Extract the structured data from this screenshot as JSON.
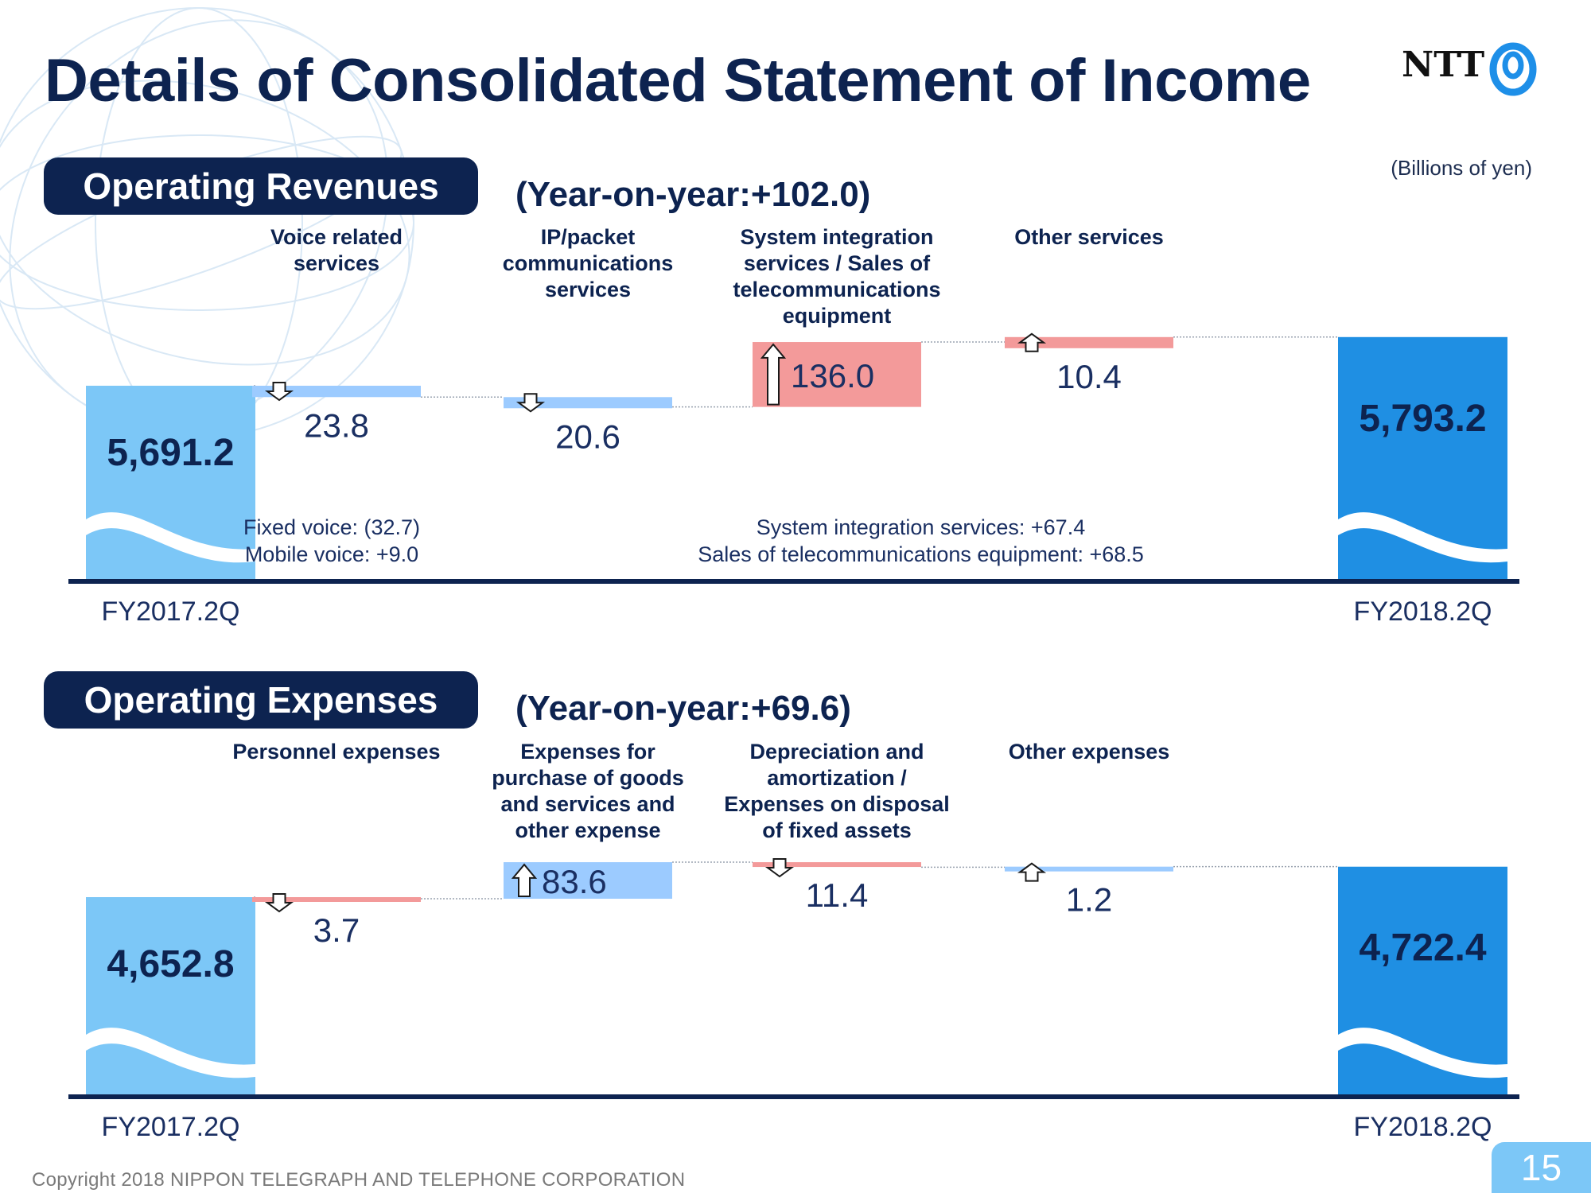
{
  "title": "Details of Consolidated Statement of Income",
  "logo": {
    "text": "NTT",
    "icon": "ntt-swirl-icon"
  },
  "units": "(Billions of yen)",
  "colors": {
    "navy": "#0d2350",
    "end_bar": "#7cc7f7",
    "end_bar_dark": "#1f8fe3",
    "increase_red": "#f39a9a",
    "decrease_blue": "#9ccbff"
  },
  "footer": {
    "copyright": "Copyright 2018 NIPPON TELEGRAPH AND TELEPHONE CORPORATION",
    "page": "15"
  },
  "chart_data": [
    {
      "type": "waterfall",
      "section_title": "Operating Revenues",
      "yoy": "(Year-on-year:+102.0)",
      "start": {
        "label": "FY2017.2Q",
        "value": 5691.2,
        "display": "5,691.2"
      },
      "end": {
        "label": "FY2018.2Q",
        "value": 5793.2,
        "display": "5,793.2"
      },
      "steps": [
        {
          "category": "Voice related services",
          "category_lines": [
            "Voice related",
            "services"
          ],
          "value": -23.8,
          "display": "23.8",
          "color": "decrease_blue",
          "arrow": "down-arrow-icon"
        },
        {
          "category": "IP/packet communications services",
          "category_lines": [
            "IP/packet",
            "communications",
            "services"
          ],
          "value": -20.6,
          "display": "20.6",
          "color": "decrease_blue",
          "arrow": "down-arrow-icon"
        },
        {
          "category": "System integration services / Sales of telecommunications equipment",
          "category_lines": [
            "System integration",
            "services / Sales of",
            "telecommunications",
            "equipment"
          ],
          "value": 136.0,
          "display": "136.0",
          "color": "increase_red",
          "arrow": "up-arrow-icon"
        },
        {
          "category": "Other services",
          "category_lines": [
            "Other services"
          ],
          "value": 10.4,
          "display": "10.4",
          "color": "increase_red",
          "arrow": "up-arrow-icon"
        }
      ],
      "notes": [
        {
          "anchor": 0,
          "lines": [
            "Fixed voice: (32.7)",
            "Mobile voice: +9.0"
          ]
        },
        {
          "anchor": 1.5,
          "lines": [
            "System integration services: +67.4",
            "Sales of telecommunications equipment: +68.5"
          ]
        }
      ]
    },
    {
      "type": "waterfall",
      "section_title": "Operating Expenses",
      "yoy": "(Year-on-year:+69.6)",
      "start": {
        "label": "FY2017.2Q",
        "value": 4652.8,
        "display": "4,652.8"
      },
      "end": {
        "label": "FY2018.2Q",
        "value": 4722.4,
        "display": "4,722.4"
      },
      "steps": [
        {
          "category": "Personnel expenses",
          "category_lines": [
            "Personnel expenses"
          ],
          "value": -3.7,
          "display": "3.7",
          "color": "increase_red",
          "arrow": "down-arrow-icon"
        },
        {
          "category": "Expenses for purchase of goods and services and other expense",
          "category_lines": [
            "Expenses for",
            "purchase of goods",
            "and services and",
            "other expense"
          ],
          "value": 83.6,
          "display": "83.6",
          "color": "decrease_blue",
          "arrow": "up-arrow-icon"
        },
        {
          "category": "Depreciation and amortization / Expenses on disposal of fixed assets",
          "category_lines": [
            "Depreciation and",
            "amortization /",
            "Expenses on disposal",
            "of fixed assets"
          ],
          "value": -11.4,
          "display": "11.4",
          "color": "increase_red",
          "arrow": "down-arrow-icon"
        },
        {
          "category": "Other expenses",
          "category_lines": [
            "Other expenses"
          ],
          "value": 1.2,
          "display": "1.2",
          "color": "decrease_blue",
          "arrow": "up-arrow-icon"
        }
      ],
      "notes": []
    }
  ]
}
